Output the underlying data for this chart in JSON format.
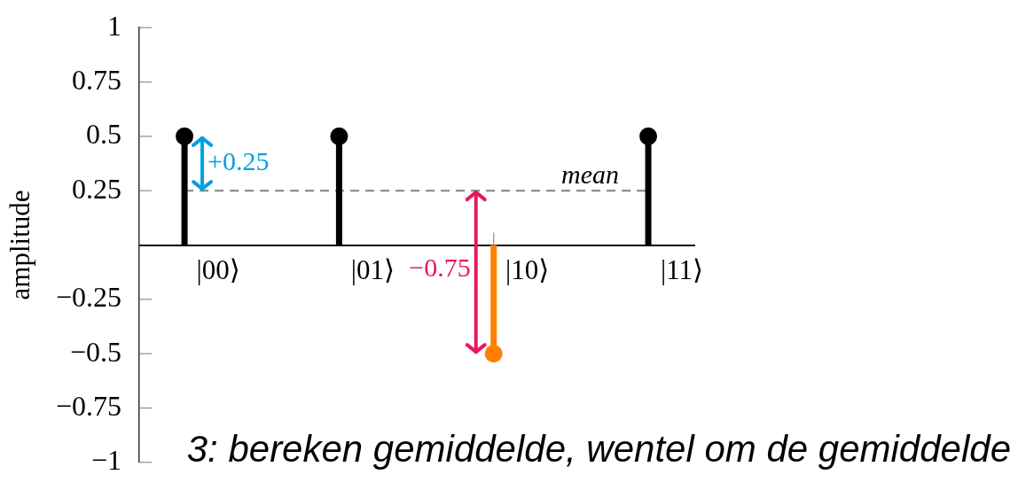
{
  "chart_data": {
    "type": "lollipop",
    "title": "3: bereken gemiddelde, wentel om de gemiddelde",
    "ylabel": "amplitude",
    "categories": [
      "|00⟩",
      "|01⟩",
      "|10⟩",
      "|11⟩"
    ],
    "values": [
      0.5,
      0.5,
      -0.5,
      0.5
    ],
    "colors": [
      "#000000",
      "#000000",
      "#ff8000",
      "#000000"
    ],
    "marker": "circle",
    "ylim": [
      -1,
      1
    ],
    "yticks": [
      {
        "value": -1,
        "label": "−1"
      },
      {
        "value": -0.75,
        "label": "−0.75"
      },
      {
        "value": -0.5,
        "label": "−0.5"
      },
      {
        "value": -0.25,
        "label": "−0.25"
      },
      0.25,
      0.5,
      0.75,
      1
    ],
    "ref_lines": [
      {
        "axis": "y",
        "value": 0.25,
        "label": "mean",
        "color": "#808080",
        "line_style": "dashed"
      }
    ],
    "annotations": [
      "+0.25",
      "−0.75"
    ]
  }
}
